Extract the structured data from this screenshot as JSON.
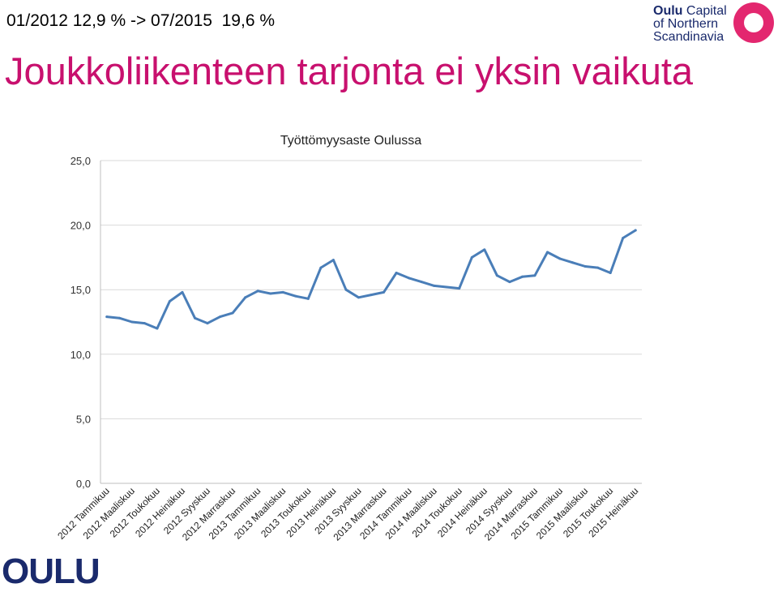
{
  "header": {
    "subtitle": "01/2012 12,9 % -> 07/2015  19,6 %",
    "headline": "Joukkoliikenteen tarjonta ei yksin vaikuta"
  },
  "brand": {
    "line1_bold": "Oulu",
    "line1_rest": " Capital",
    "line2": "of Northern",
    "line3": "Scandinavia",
    "footer_logo": "OULU",
    "color_primary": "#1a2a6c",
    "color_accent": "#e3276f"
  },
  "colors": {
    "headline": "#c8106e",
    "series": "#4a7eb8",
    "grid": "#d9d9d9"
  },
  "chart_data": {
    "type": "line",
    "title": "Työttömyysaste Oulussa",
    "ylim": [
      0,
      25
    ],
    "yticks": [
      "0,0",
      "5,0",
      "10,0",
      "15,0",
      "20,0",
      "25,0"
    ],
    "grid": true,
    "x_labels": [
      "2012 Tammikuu",
      "2012 Maaliskuu",
      "2012 Toukokuu",
      "2012 Heinäkuu",
      "2012 Syyskuu",
      "2012 Marraskuu",
      "2013 Tammikuu",
      "2013 Maaliskuu",
      "2013 Toukokuu",
      "2013 Heinäkuu",
      "2013 Syyskuu",
      "2013 Marraskuu",
      "2014 Tammikuu",
      "2014 Maaliskuu",
      "2014 Toukokuu",
      "2014 Heinäkuu",
      "2014 Syyskuu",
      "2014 Marraskuu",
      "2015 Tammikuu",
      "2015 Maaliskuu",
      "2015 Toukokuu",
      "2015 Heinäkuu"
    ],
    "series": [
      {
        "values": [
          12.9,
          12.8,
          12.5,
          12.4,
          12.0,
          14.1,
          14.8,
          12.8,
          12.4,
          12.9,
          13.2,
          14.4,
          14.9,
          14.7,
          14.8,
          14.5,
          14.3,
          16.7,
          17.3,
          15.0,
          14.4,
          14.6,
          14.8,
          16.3,
          15.9,
          15.6,
          15.3,
          15.2,
          15.1,
          17.5,
          18.1,
          16.1,
          15.6,
          16.0,
          16.1,
          17.9,
          17.4,
          17.1,
          16.8,
          16.7,
          16.3,
          19.0,
          19.6
        ]
      }
    ]
  }
}
